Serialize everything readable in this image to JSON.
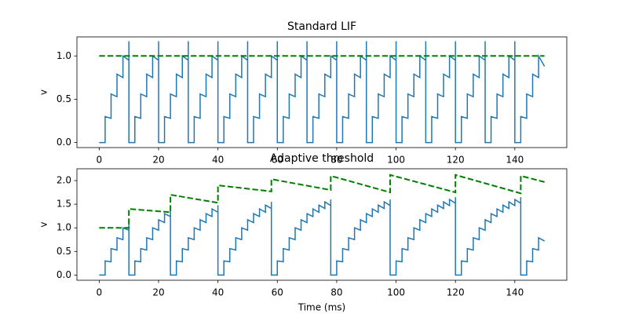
{
  "chart_data": [
    {
      "type": "line",
      "title": "Standard LIF",
      "ylabel": "v",
      "xlim": [
        -7.5,
        157.5
      ],
      "ylim": [
        -0.058,
        1.22
      ],
      "xticks": [
        0,
        20,
        40,
        60,
        80,
        100,
        120,
        140
      ],
      "yticks": [
        {
          "value": 0,
          "label": "0.0"
        },
        {
          "value": 0.5,
          "label": "0.5"
        },
        {
          "value": 1,
          "label": "1.0"
        }
      ],
      "series": [
        {
          "color": "#1f77b4",
          "linestyle": "solid",
          "x": [
            0,
            2,
            2,
            4,
            4,
            6,
            6,
            8,
            8,
            10,
            10,
            10,
            12,
            12,
            14,
            14,
            16,
            16,
            18,
            18,
            20,
            20,
            20,
            22,
            22,
            24,
            24,
            26,
            26,
            28,
            28,
            30,
            30,
            30,
            32,
            32,
            34,
            34,
            36,
            36,
            38,
            38,
            40,
            40,
            40,
            42,
            42,
            44,
            44,
            46,
            46,
            48,
            48,
            50,
            50,
            50,
            52,
            52,
            54,
            54,
            56,
            56,
            58,
            58,
            60,
            60,
            60,
            62,
            62,
            64,
            64,
            66,
            66,
            68,
            68,
            70,
            70,
            70,
            72,
            72,
            74,
            74,
            76,
            76,
            78,
            78,
            80,
            80,
            80,
            82,
            82,
            84,
            84,
            86,
            86,
            88,
            88,
            90,
            90,
            90,
            92,
            92,
            94,
            94,
            96,
            96,
            98,
            98,
            100,
            100,
            100,
            102,
            102,
            104,
            104,
            106,
            106,
            108,
            108,
            110,
            110,
            110,
            112,
            112,
            114,
            114,
            116,
            116,
            118,
            118,
            120,
            120,
            120,
            122,
            122,
            124,
            124,
            126,
            126,
            128,
            128,
            130,
            130,
            130,
            132,
            132,
            134,
            134,
            136,
            136,
            138,
            138,
            140,
            140,
            140,
            142,
            142,
            144,
            144,
            146,
            146,
            148,
            148,
            150
          ],
          "values": [
            0,
            0,
            0.3,
            0.28,
            0.56,
            0.53,
            0.79,
            0.75,
            1.0,
            0.95,
            1.17,
            0,
            0,
            0.3,
            0.28,
            0.56,
            0.53,
            0.79,
            0.75,
            1.0,
            0.95,
            1.17,
            0,
            0,
            0.3,
            0.28,
            0.56,
            0.53,
            0.79,
            0.75,
            1.0,
            0.95,
            1.17,
            0,
            0,
            0.3,
            0.28,
            0.56,
            0.53,
            0.79,
            0.75,
            1.0,
            0.95,
            1.17,
            0,
            0,
            0.3,
            0.28,
            0.56,
            0.53,
            0.79,
            0.75,
            1.0,
            0.95,
            1.17,
            0,
            0,
            0.3,
            0.28,
            0.56,
            0.53,
            0.79,
            0.75,
            1.0,
            0.95,
            1.17,
            0,
            0,
            0.3,
            0.28,
            0.56,
            0.53,
            0.79,
            0.75,
            1.0,
            0.95,
            1.17,
            0,
            0,
            0.3,
            0.28,
            0.56,
            0.53,
            0.79,
            0.75,
            1.0,
            0.95,
            1.17,
            0,
            0,
            0.3,
            0.28,
            0.56,
            0.53,
            0.79,
            0.75,
            1.0,
            0.95,
            1.17,
            0,
            0,
            0.3,
            0.28,
            0.56,
            0.53,
            0.79,
            0.75,
            1.0,
            0.95,
            1.17,
            0,
            0,
            0.3,
            0.28,
            0.56,
            0.53,
            0.79,
            0.75,
            1.0,
            0.95,
            1.17,
            0,
            0,
            0.3,
            0.28,
            0.56,
            0.53,
            0.79,
            0.75,
            1.0,
            0.95,
            1.17,
            0,
            0,
            0.3,
            0.28,
            0.56,
            0.53,
            0.79,
            0.75,
            1.0,
            0.95,
            1.17,
            0,
            0,
            0.3,
            0.28,
            0.56,
            0.53,
            0.79,
            0.75,
            1.0,
            0.95,
            1.17,
            0,
            0,
            0.3,
            0.28,
            0.56,
            0.53,
            0.79,
            0.75,
            1.0,
            0.88
          ]
        },
        {
          "color": "#008000",
          "linestyle": "dashed",
          "x": [
            0,
            150
          ],
          "values": [
            1.0,
            1.0
          ]
        }
      ]
    },
    {
      "type": "line",
      "title": "Adaptive threshold",
      "ylabel": "v",
      "xlabel": "Time (ms)",
      "xlim": [
        -7.5,
        157.5
      ],
      "ylim": [
        -0.11,
        2.25
      ],
      "xticks": [
        0,
        20,
        40,
        60,
        80,
        100,
        120,
        140
      ],
      "yticks": [
        {
          "value": 0,
          "label": "0.0"
        },
        {
          "value": 0.5,
          "label": "0.5"
        },
        {
          "value": 1,
          "label": "1.0"
        },
        {
          "value": 1.5,
          "label": "1.5"
        },
        {
          "value": 2,
          "label": "2.0"
        }
      ],
      "series": [
        {
          "color": "#1f77b4",
          "linestyle": "solid",
          "x": [
            0,
            2,
            2,
            4,
            4,
            6,
            6,
            8,
            8,
            10,
            10,
            10,
            12,
            12,
            14,
            14,
            16,
            16,
            18,
            18,
            20,
            20,
            22,
            22,
            24,
            24,
            24,
            26,
            26,
            28,
            28,
            30,
            30,
            32,
            32,
            34,
            34,
            36,
            36,
            38,
            38,
            40,
            40,
            40,
            42,
            42,
            44,
            44,
            46,
            46,
            48,
            48,
            50,
            50,
            52,
            52,
            54,
            54,
            56,
            56,
            58,
            58,
            58,
            60,
            60,
            62,
            62,
            64,
            64,
            66,
            66,
            68,
            68,
            70,
            70,
            72,
            72,
            74,
            74,
            76,
            76,
            78,
            78,
            78,
            80,
            80,
            82,
            82,
            84,
            84,
            86,
            86,
            88,
            88,
            90,
            90,
            92,
            92,
            94,
            94,
            96,
            96,
            98,
            98,
            98,
            100,
            100,
            102,
            102,
            104,
            104,
            106,
            106,
            108,
            108,
            110,
            110,
            112,
            112,
            114,
            114,
            116,
            116,
            118,
            118,
            120,
            120,
            120,
            122,
            122,
            124,
            124,
            126,
            126,
            128,
            128,
            130,
            130,
            132,
            132,
            134,
            134,
            136,
            136,
            138,
            138,
            140,
            140,
            142,
            142,
            142,
            144,
            144,
            146,
            146,
            148,
            148,
            150
          ],
          "values": [
            0,
            0,
            0.3,
            0.28,
            0.56,
            0.53,
            0.79,
            0.75,
            1.0,
            0.95,
            1.17,
            0,
            0,
            0.3,
            0.28,
            0.56,
            0.53,
            0.79,
            0.75,
            1.0,
            0.95,
            1.17,
            1.11,
            1.3,
            1.24,
            1.4,
            0,
            0,
            0.3,
            0.28,
            0.56,
            0.53,
            0.79,
            0.75,
            1.0,
            0.95,
            1.17,
            1.11,
            1.3,
            1.24,
            1.4,
            1.33,
            1.48,
            0,
            0,
            0.3,
            0.28,
            0.56,
            0.53,
            0.79,
            0.75,
            1.0,
            0.95,
            1.17,
            1.11,
            1.3,
            1.24,
            1.4,
            1.33,
            1.48,
            1.41,
            1.55,
            0,
            0,
            0.3,
            0.28,
            0.56,
            0.53,
            0.79,
            0.75,
            1.0,
            0.95,
            1.17,
            1.11,
            1.3,
            1.24,
            1.4,
            1.33,
            1.48,
            1.41,
            1.55,
            1.47,
            1.6,
            0,
            0,
            0.3,
            0.28,
            0.56,
            0.53,
            0.79,
            0.75,
            1.0,
            0.95,
            1.17,
            1.11,
            1.3,
            1.24,
            1.4,
            1.33,
            1.48,
            1.41,
            1.55,
            1.47,
            1.6,
            0,
            0,
            0.3,
            0.28,
            0.56,
            0.53,
            0.79,
            0.75,
            1.0,
            0.95,
            1.17,
            1.11,
            1.3,
            1.24,
            1.4,
            1.33,
            1.48,
            1.41,
            1.55,
            1.47,
            1.6,
            1.52,
            1.65,
            0,
            0,
            0.3,
            0.28,
            0.56,
            0.53,
            0.79,
            0.75,
            1.0,
            0.95,
            1.17,
            1.11,
            1.3,
            1.24,
            1.4,
            1.33,
            1.48,
            1.41,
            1.55,
            1.47,
            1.6,
            1.52,
            1.65,
            0,
            0,
            0.3,
            0.28,
            0.56,
            0.53,
            0.79,
            0.72
          ]
        },
        {
          "color": "#008000",
          "linestyle": "dashed",
          "x": [
            0,
            10,
            10,
            24,
            24,
            40,
            40,
            58,
            58,
            78,
            78,
            98,
            98,
            120,
            120,
            142,
            142,
            150
          ],
          "values": [
            1.0,
            1.0,
            1.4,
            1.33,
            1.7,
            1.53,
            1.9,
            1.77,
            2.03,
            1.8,
            2.1,
            1.75,
            2.12,
            1.75,
            2.12,
            1.73,
            2.1,
            1.97
          ]
        }
      ]
    }
  ]
}
